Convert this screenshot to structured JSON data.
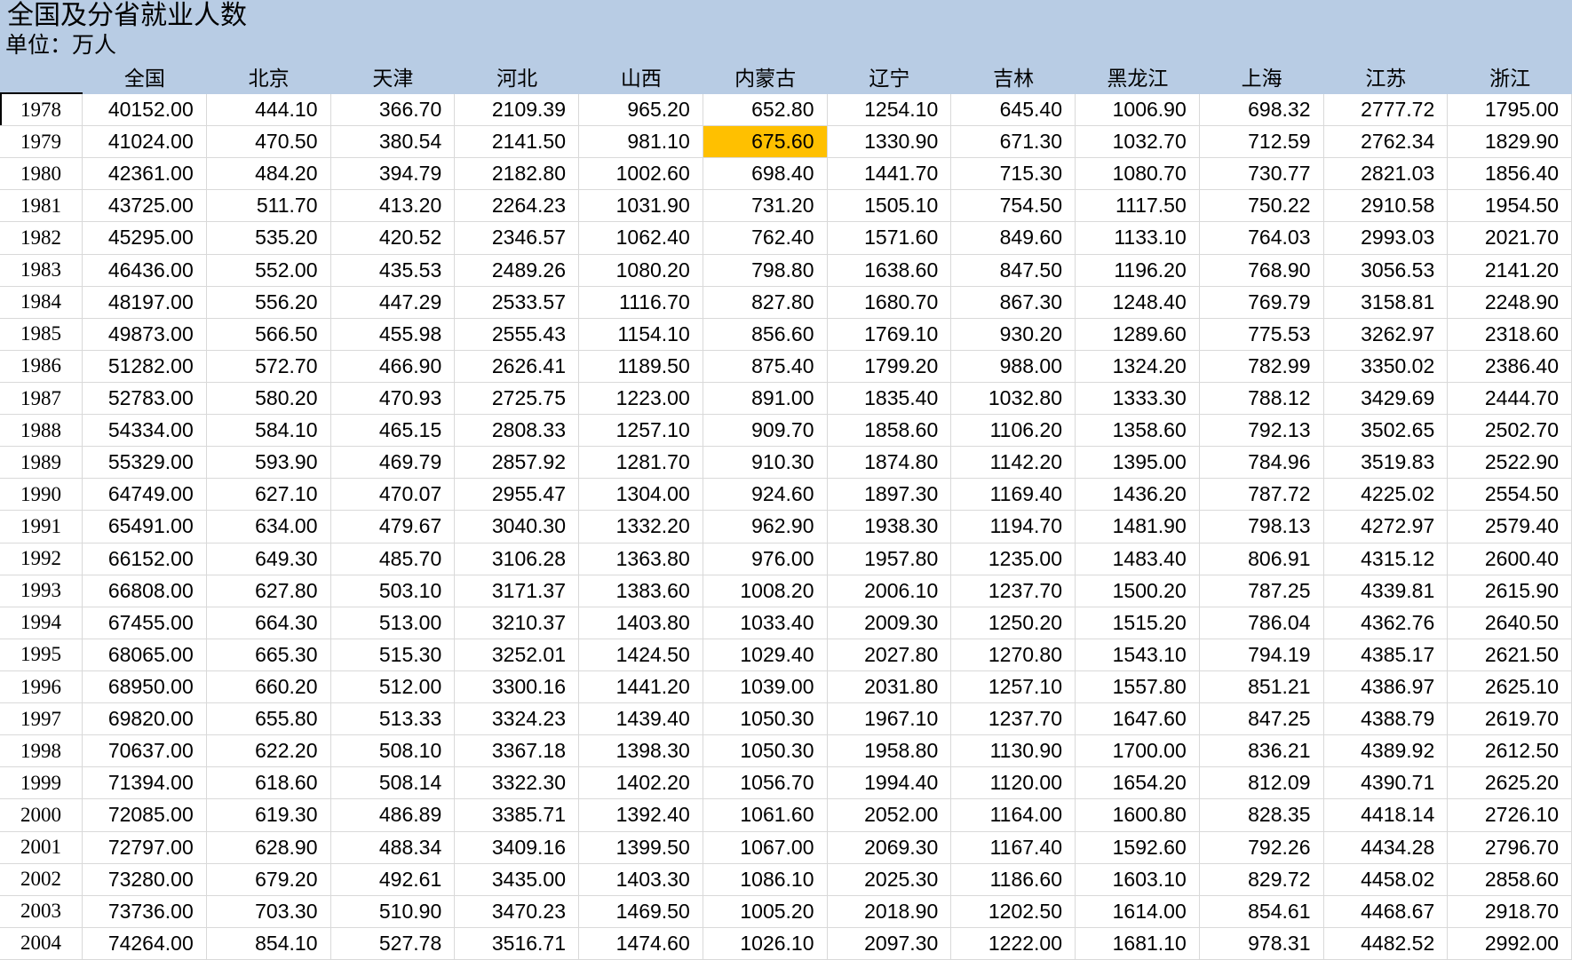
{
  "title": "全国及分省就业人数",
  "subtitle": "单位：万人",
  "colors": {
    "header_bg": "#B8CCE4",
    "gridline": "#D9D9D9",
    "highlight": "#FFC000"
  },
  "table": {
    "row_header_label": "",
    "columns": [
      "全国",
      "北京",
      "天津",
      "河北",
      "山西",
      "内蒙古",
      "辽宁",
      "吉林",
      "黑龙江",
      "上海",
      "江苏",
      "浙江"
    ],
    "highlight": {
      "row_index": 1,
      "col_index": 5,
      "year": "1979",
      "column": "内蒙古",
      "value": "675.60",
      "color": "#FFC000"
    },
    "rows": [
      {
        "year": "1978",
        "values": [
          "40152.00",
          "444.10",
          "366.70",
          "2109.39",
          "965.20",
          "652.80",
          "1254.10",
          "645.40",
          "1006.90",
          "698.32",
          "2777.72",
          "1795.00"
        ]
      },
      {
        "year": "1979",
        "values": [
          "41024.00",
          "470.50",
          "380.54",
          "2141.50",
          "981.10",
          "675.60",
          "1330.90",
          "671.30",
          "1032.70",
          "712.59",
          "2762.34",
          "1829.90"
        ]
      },
      {
        "year": "1980",
        "values": [
          "42361.00",
          "484.20",
          "394.79",
          "2182.80",
          "1002.60",
          "698.40",
          "1441.70",
          "715.30",
          "1080.70",
          "730.77",
          "2821.03",
          "1856.40"
        ]
      },
      {
        "year": "1981",
        "values": [
          "43725.00",
          "511.70",
          "413.20",
          "2264.23",
          "1031.90",
          "731.20",
          "1505.10",
          "754.50",
          "1117.50",
          "750.22",
          "2910.58",
          "1954.50"
        ]
      },
      {
        "year": "1982",
        "values": [
          "45295.00",
          "535.20",
          "420.52",
          "2346.57",
          "1062.40",
          "762.40",
          "1571.60",
          "849.60",
          "1133.10",
          "764.03",
          "2993.03",
          "2021.70"
        ]
      },
      {
        "year": "1983",
        "values": [
          "46436.00",
          "552.00",
          "435.53",
          "2489.26",
          "1080.20",
          "798.80",
          "1638.60",
          "847.50",
          "1196.20",
          "768.90",
          "3056.53",
          "2141.20"
        ]
      },
      {
        "year": "1984",
        "values": [
          "48197.00",
          "556.20",
          "447.29",
          "2533.57",
          "1116.70",
          "827.80",
          "1680.70",
          "867.30",
          "1248.40",
          "769.79",
          "3158.81",
          "2248.90"
        ]
      },
      {
        "year": "1985",
        "values": [
          "49873.00",
          "566.50",
          "455.98",
          "2555.43",
          "1154.10",
          "856.60",
          "1769.10",
          "930.20",
          "1289.60",
          "775.53",
          "3262.97",
          "2318.60"
        ]
      },
      {
        "year": "1986",
        "values": [
          "51282.00",
          "572.70",
          "466.90",
          "2626.41",
          "1189.50",
          "875.40",
          "1799.20",
          "988.00",
          "1324.20",
          "782.99",
          "3350.02",
          "2386.40"
        ]
      },
      {
        "year": "1987",
        "values": [
          "52783.00",
          "580.20",
          "470.93",
          "2725.75",
          "1223.00",
          "891.00",
          "1835.40",
          "1032.80",
          "1333.30",
          "788.12",
          "3429.69",
          "2444.70"
        ]
      },
      {
        "year": "1988",
        "values": [
          "54334.00",
          "584.10",
          "465.15",
          "2808.33",
          "1257.10",
          "909.70",
          "1858.60",
          "1106.20",
          "1358.60",
          "792.13",
          "3502.65",
          "2502.70"
        ]
      },
      {
        "year": "1989",
        "values": [
          "55329.00",
          "593.90",
          "469.79",
          "2857.92",
          "1281.70",
          "910.30",
          "1874.80",
          "1142.20",
          "1395.00",
          "784.96",
          "3519.83",
          "2522.90"
        ]
      },
      {
        "year": "1990",
        "values": [
          "64749.00",
          "627.10",
          "470.07",
          "2955.47",
          "1304.00",
          "924.60",
          "1897.30",
          "1169.40",
          "1436.20",
          "787.72",
          "4225.02",
          "2554.50"
        ]
      },
      {
        "year": "1991",
        "values": [
          "65491.00",
          "634.00",
          "479.67",
          "3040.30",
          "1332.20",
          "962.90",
          "1938.30",
          "1194.70",
          "1481.90",
          "798.13",
          "4272.97",
          "2579.40"
        ]
      },
      {
        "year": "1992",
        "values": [
          "66152.00",
          "649.30",
          "485.70",
          "3106.28",
          "1363.80",
          "976.00",
          "1957.80",
          "1235.00",
          "1483.40",
          "806.91",
          "4315.12",
          "2600.40"
        ]
      },
      {
        "year": "1993",
        "values": [
          "66808.00",
          "627.80",
          "503.10",
          "3171.37",
          "1383.60",
          "1008.20",
          "2006.10",
          "1237.70",
          "1500.20",
          "787.25",
          "4339.81",
          "2615.90"
        ]
      },
      {
        "year": "1994",
        "values": [
          "67455.00",
          "664.30",
          "513.00",
          "3210.37",
          "1403.80",
          "1033.40",
          "2009.30",
          "1250.20",
          "1515.20",
          "786.04",
          "4362.76",
          "2640.50"
        ]
      },
      {
        "year": "1995",
        "values": [
          "68065.00",
          "665.30",
          "515.30",
          "3252.01",
          "1424.50",
          "1029.40",
          "2027.80",
          "1270.80",
          "1543.10",
          "794.19",
          "4385.17",
          "2621.50"
        ]
      },
      {
        "year": "1996",
        "values": [
          "68950.00",
          "660.20",
          "512.00",
          "3300.16",
          "1441.20",
          "1039.00",
          "2031.80",
          "1257.10",
          "1557.80",
          "851.21",
          "4386.97",
          "2625.10"
        ]
      },
      {
        "year": "1997",
        "values": [
          "69820.00",
          "655.80",
          "513.33",
          "3324.23",
          "1439.40",
          "1050.30",
          "1967.10",
          "1237.70",
          "1647.60",
          "847.25",
          "4388.79",
          "2619.70"
        ]
      },
      {
        "year": "1998",
        "values": [
          "70637.00",
          "622.20",
          "508.10",
          "3367.18",
          "1398.30",
          "1050.30",
          "1958.80",
          "1130.90",
          "1700.00",
          "836.21",
          "4389.92",
          "2612.50"
        ]
      },
      {
        "year": "1999",
        "values": [
          "71394.00",
          "618.60",
          "508.14",
          "3322.30",
          "1402.20",
          "1056.70",
          "1994.40",
          "1120.00",
          "1654.20",
          "812.09",
          "4390.71",
          "2625.20"
        ]
      },
      {
        "year": "2000",
        "values": [
          "72085.00",
          "619.30",
          "486.89",
          "3385.71",
          "1392.40",
          "1061.60",
          "2052.00",
          "1164.00",
          "1600.80",
          "828.35",
          "4418.14",
          "2726.10"
        ]
      },
      {
        "year": "2001",
        "values": [
          "72797.00",
          "628.90",
          "488.34",
          "3409.16",
          "1399.50",
          "1067.00",
          "2069.30",
          "1167.40",
          "1592.60",
          "792.26",
          "4434.28",
          "2796.70"
        ]
      },
      {
        "year": "2002",
        "values": [
          "73280.00",
          "679.20",
          "492.61",
          "3435.00",
          "1403.30",
          "1086.10",
          "2025.30",
          "1186.60",
          "1603.10",
          "829.72",
          "4458.02",
          "2858.60"
        ]
      },
      {
        "year": "2003",
        "values": [
          "73736.00",
          "703.30",
          "510.90",
          "3470.23",
          "1469.50",
          "1005.20",
          "2018.90",
          "1202.50",
          "1614.00",
          "854.61",
          "4468.67",
          "2918.70"
        ]
      },
      {
        "year": "2004",
        "values": [
          "74264.00",
          "854.10",
          "527.78",
          "3516.71",
          "1474.60",
          "1026.10",
          "2097.30",
          "1222.00",
          "1681.10",
          "978.31",
          "4482.52",
          "2992.00"
        ]
      }
    ]
  }
}
